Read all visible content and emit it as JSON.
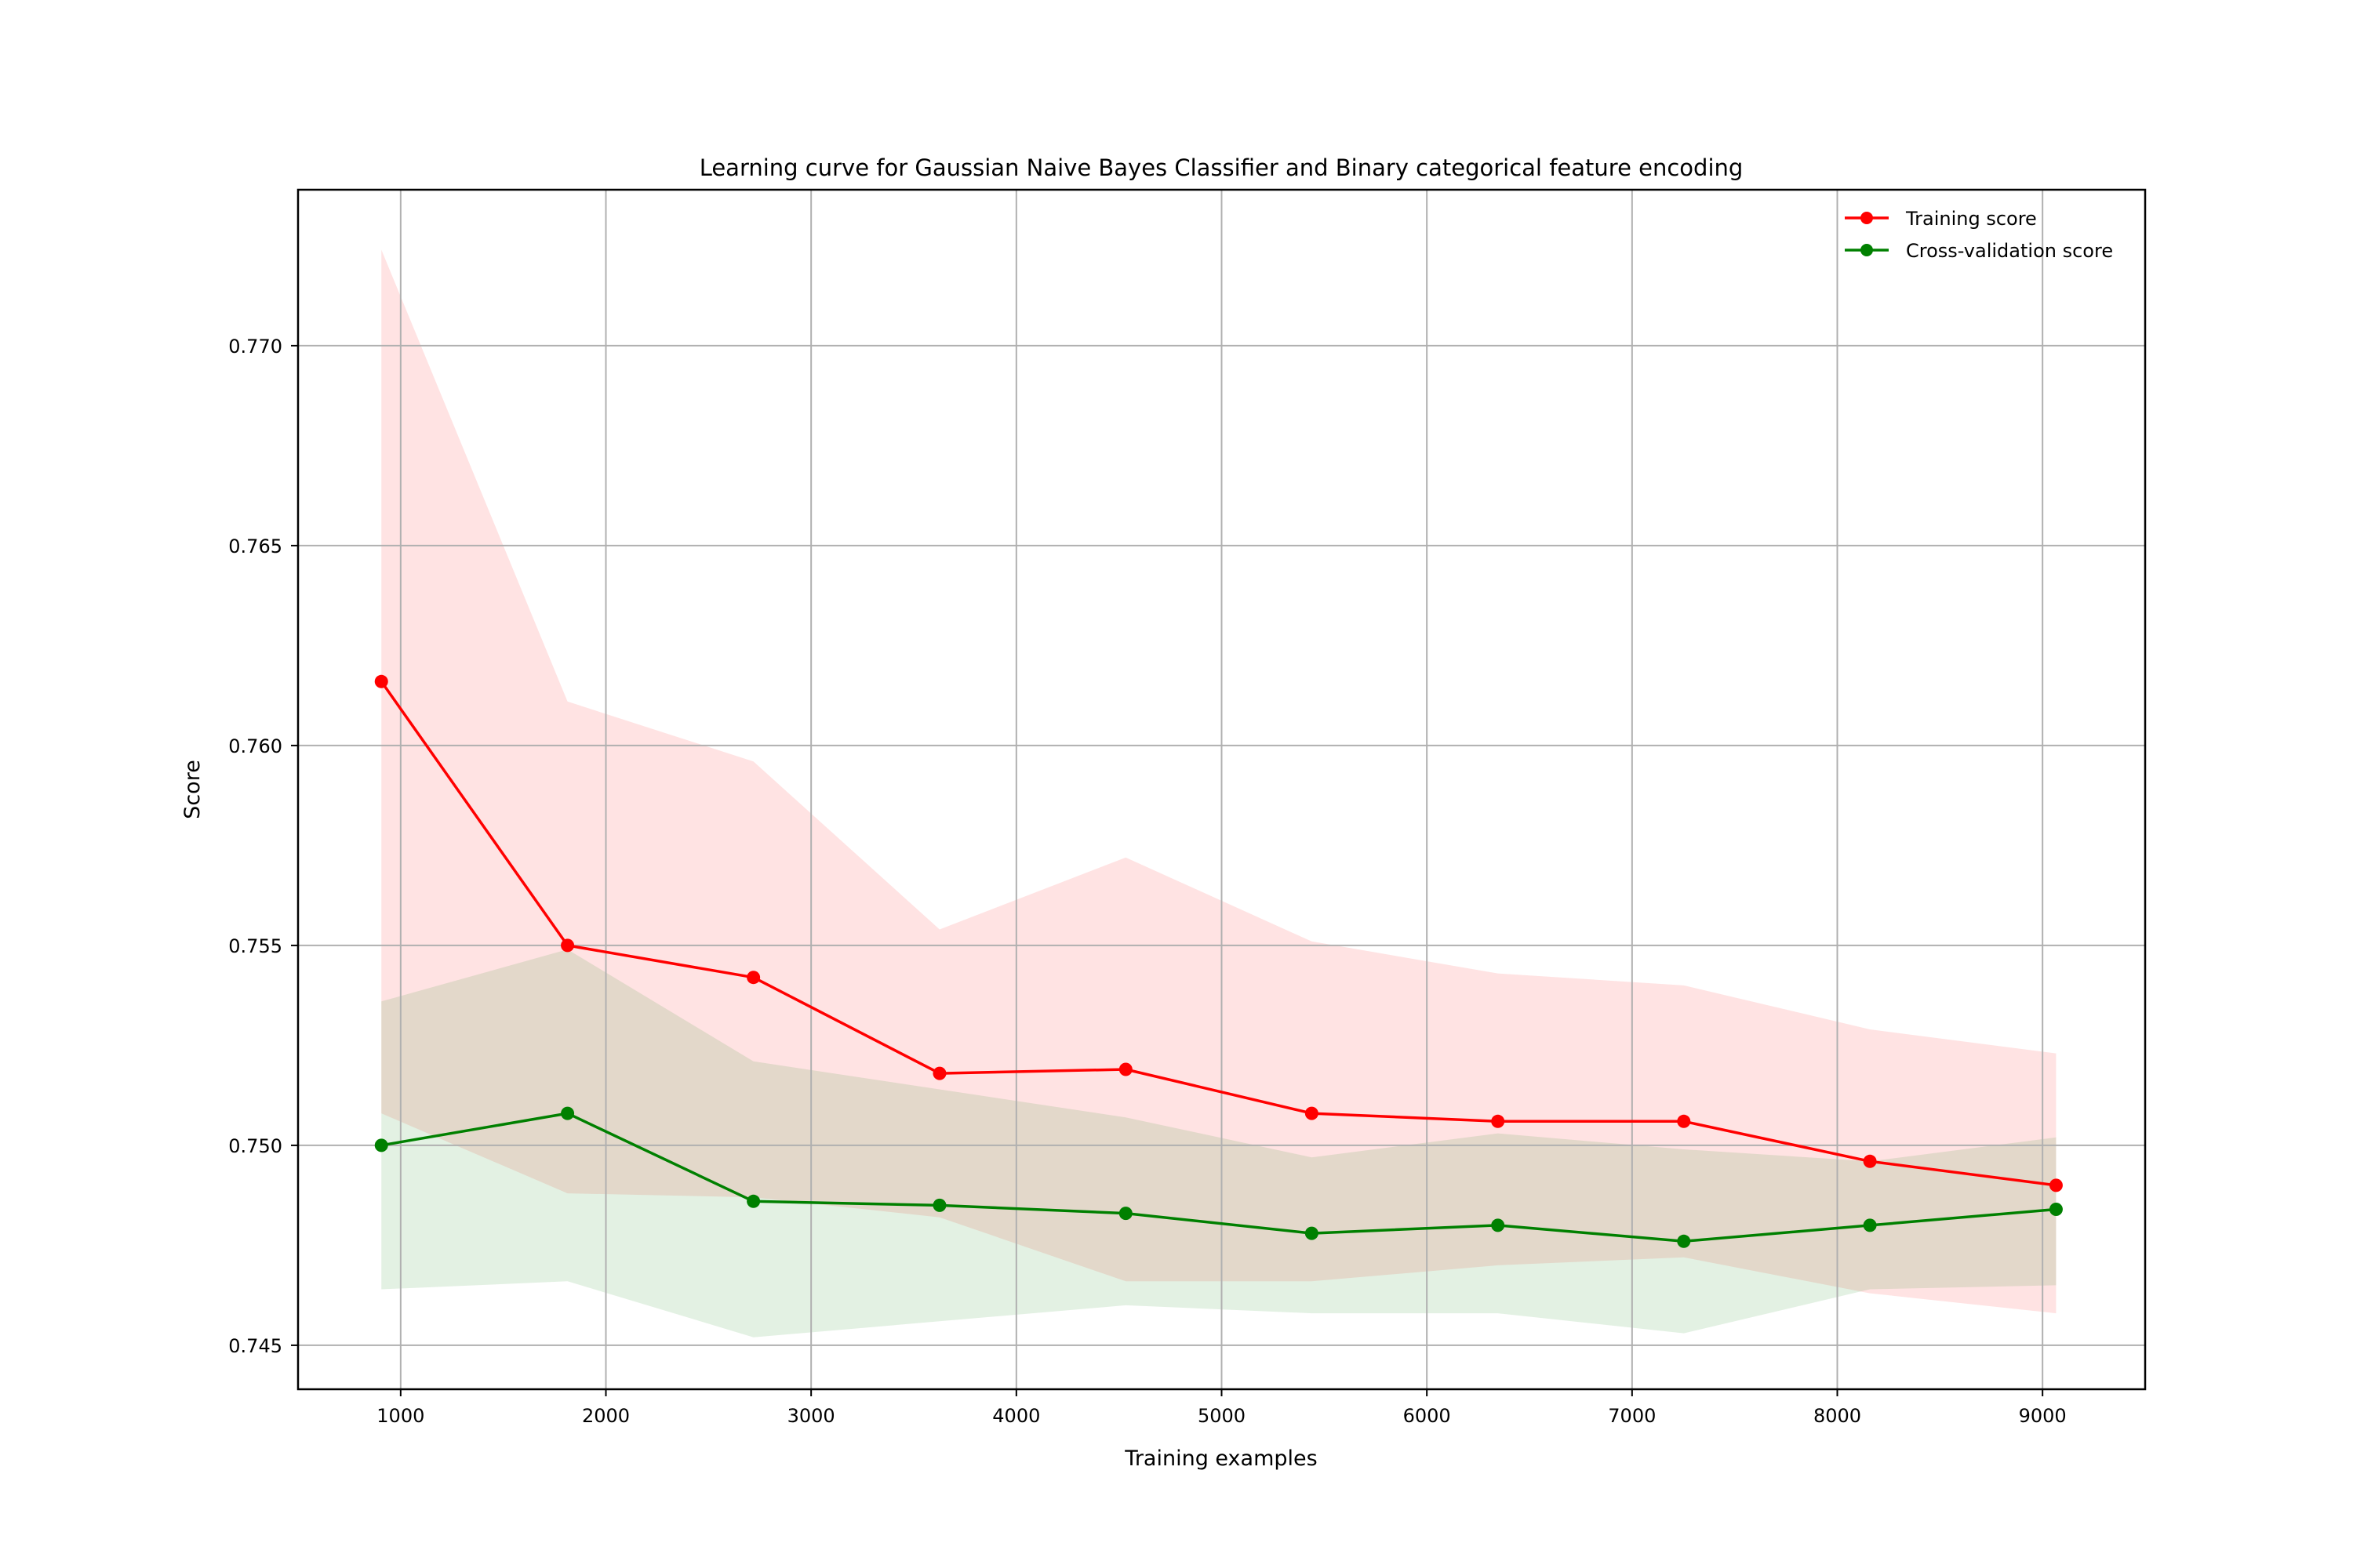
{
  "chart_data": {
    "type": "line",
    "title": "Learning curve for Gaussian Naive Bayes Classifier and Binary categorical feature encoding",
    "xlabel": "Training examples",
    "ylabel": "Score",
    "xlim": [
      500,
      9500
    ],
    "ylim": [
      0.7439,
      0.7739
    ],
    "x_ticks": [
      1000,
      2000,
      3000,
      4000,
      5000,
      6000,
      7000,
      8000,
      9000
    ],
    "y_ticks": [
      0.745,
      0.75,
      0.755,
      0.76,
      0.765,
      0.77
    ],
    "y_tick_labels": [
      "0.745",
      "0.750",
      "0.755",
      "0.760",
      "0.765",
      "0.770"
    ],
    "grid": true,
    "legend_position": "top-right",
    "x": [
      906,
      1813,
      2719,
      3626,
      4533,
      5439,
      6346,
      7252,
      8159,
      9066
    ],
    "series": [
      {
        "name": "Training score",
        "color": "#ff0000",
        "band_color": "#ffe0e0",
        "values": [
          0.7616,
          0.755,
          0.7542,
          0.7518,
          0.7519,
          0.7508,
          0.7506,
          0.7506,
          0.7496,
          0.749
        ],
        "band_upper": [
          0.7724,
          0.7611,
          0.7596,
          0.7554,
          0.7572,
          0.7551,
          0.7543,
          0.754,
          0.7529,
          0.7523
        ],
        "band_lower": [
          0.7508,
          0.7488,
          0.7487,
          0.7482,
          0.7466,
          0.7466,
          0.747,
          0.7472,
          0.7463,
          0.7458
        ]
      },
      {
        "name": "Cross-validation score",
        "color": "#008000",
        "band_color": "#e0f0e0",
        "values": [
          0.75,
          0.7508,
          0.7486,
          0.7485,
          0.7483,
          0.7478,
          0.748,
          0.7476,
          0.748,
          0.7484
        ],
        "band_upper": [
          0.7536,
          0.7549,
          0.7521,
          0.7514,
          0.7507,
          0.7497,
          0.7503,
          0.7499,
          0.7496,
          0.7502
        ],
        "band_lower": [
          0.7464,
          0.7466,
          0.7452,
          0.7456,
          0.746,
          0.7458,
          0.7458,
          0.7453,
          0.7464,
          0.7465
        ]
      }
    ]
  }
}
